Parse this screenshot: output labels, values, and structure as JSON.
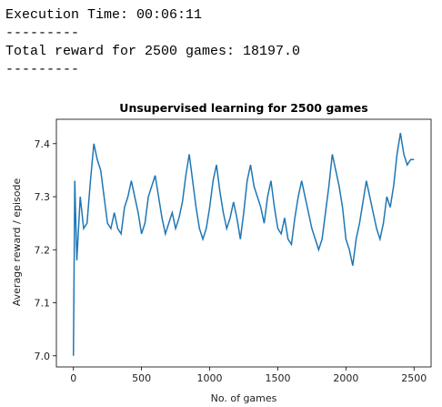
{
  "output": [
    "Execution Time: 00:06:11",
    "---------",
    "Total reward for 2500 games: 18197.0",
    "---------"
  ],
  "chart_data": {
    "type": "line",
    "title": "Unsupervised learning for 2500 games",
    "xlabel": "No. of games",
    "ylabel": "Average reward / episode",
    "color": "#1f77b4",
    "xlim": [
      -125,
      2625
    ],
    "ylim": [
      6.979,
      7.446
    ],
    "xticks": [
      0,
      500,
      1000,
      1500,
      2000,
      2500
    ],
    "yticks": [
      {
        "value": 7,
        "label": "7.0"
      },
      7.1,
      7.2,
      7.3,
      7.4
    ],
    "x": [
      0,
      10,
      25,
      50,
      75,
      100,
      125,
      150,
      175,
      200,
      225,
      250,
      275,
      300,
      325,
      350,
      375,
      400,
      425,
      450,
      475,
      500,
      525,
      550,
      575,
      600,
      625,
      650,
      675,
      700,
      725,
      750,
      775,
      800,
      825,
      850,
      875,
      900,
      925,
      950,
      975,
      1000,
      1025,
      1050,
      1075,
      1100,
      1125,
      1150,
      1175,
      1200,
      1225,
      1250,
      1275,
      1300,
      1325,
      1350,
      1375,
      1400,
      1425,
      1450,
      1475,
      1500,
      1525,
      1550,
      1575,
      1600,
      1625,
      1650,
      1675,
      1700,
      1725,
      1750,
      1775,
      1800,
      1825,
      1850,
      1875,
      1900,
      1925,
      1950,
      1975,
      2000,
      2025,
      2050,
      2075,
      2100,
      2125,
      2150,
      2175,
      2200,
      2225,
      2250,
      2275,
      2300,
      2325,
      2350,
      2375,
      2400,
      2425,
      2450,
      2475,
      2500
    ],
    "values": [
      7.0,
      7.33,
      7.18,
      7.3,
      7.24,
      7.25,
      7.33,
      7.4,
      7.37,
      7.35,
      7.3,
      7.25,
      7.24,
      7.27,
      7.24,
      7.23,
      7.28,
      7.3,
      7.33,
      7.3,
      7.27,
      7.23,
      7.25,
      7.3,
      7.32,
      7.34,
      7.3,
      7.26,
      7.23,
      7.25,
      7.27,
      7.24,
      7.26,
      7.29,
      7.34,
      7.38,
      7.33,
      7.28,
      7.24,
      7.22,
      7.24,
      7.28,
      7.33,
      7.36,
      7.31,
      7.27,
      7.24,
      7.26,
      7.29,
      7.26,
      7.22,
      7.27,
      7.33,
      7.36,
      7.32,
      7.3,
      7.28,
      7.25,
      7.3,
      7.33,
      7.28,
      7.24,
      7.23,
      7.26,
      7.22,
      7.21,
      7.26,
      7.3,
      7.33,
      7.3,
      7.27,
      7.24,
      7.22,
      7.2,
      7.22,
      7.27,
      7.32,
      7.38,
      7.35,
      7.32,
      7.28,
      7.22,
      7.2,
      7.17,
      7.22,
      7.25,
      7.29,
      7.33,
      7.3,
      7.27,
      7.24,
      7.22,
      7.25,
      7.3,
      7.28,
      7.32,
      7.38,
      7.42,
      7.38,
      7.36,
      7.37,
      7.37
    ]
  }
}
